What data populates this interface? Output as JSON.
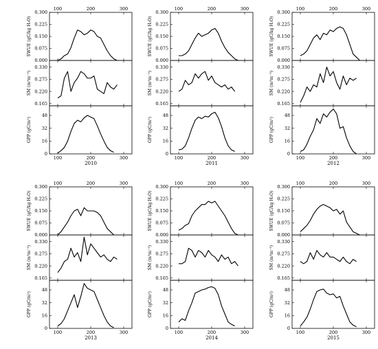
{
  "chart_data": [
    {
      "type": "line",
      "year": "2010",
      "x": [
        100,
        110,
        120,
        130,
        140,
        150,
        160,
        170,
        180,
        190,
        200,
        210,
        220,
        230,
        240,
        250,
        260,
        270,
        280,
        290,
        300
      ],
      "panels": [
        {
          "ylabel": "SWUE (gC/kg H₂O)",
          "yticks": [
            "0.000",
            "0.075",
            "0.150",
            "0.225",
            "0.300"
          ],
          "ylim": [
            0.0,
            0.3
          ],
          "values": [
            0.0,
            0.01,
            0.03,
            0.04,
            0.08,
            0.14,
            0.19,
            0.18,
            0.16,
            0.17,
            0.19,
            0.18,
            0.15,
            0.14,
            0.1,
            0.06,
            0.03,
            0.01,
            0.0,
            null,
            null
          ]
        },
        {
          "ylabel": "SM (m³m⁻³)",
          "yticks": [
            "0.165",
            "0.220",
            "0.275",
            "0.330"
          ],
          "ylim": [
            0.155,
            0.36
          ],
          "values": [
            0.19,
            0.2,
            0.28,
            0.31,
            0.22,
            0.26,
            0.28,
            0.31,
            0.3,
            0.28,
            0.28,
            0.29,
            0.23,
            0.22,
            0.21,
            0.26,
            0.24,
            0.23,
            0.25,
            null,
            null
          ]
        },
        {
          "ylabel": "GPP (gC/m²)",
          "yticks": [
            "0",
            "16",
            "32",
            "48"
          ],
          "ylim": [
            0,
            60
          ],
          "values": [
            1,
            4,
            8,
            16,
            28,
            38,
            42,
            40,
            45,
            48,
            46,
            44,
            35,
            25,
            16,
            8,
            4,
            2,
            null,
            null,
            null
          ]
        }
      ]
    },
    {
      "type": "line",
      "year": "2011",
      "x": [
        100,
        110,
        120,
        130,
        140,
        150,
        160,
        170,
        180,
        190,
        200,
        210,
        220,
        230,
        240,
        250,
        260,
        270,
        280,
        290,
        300
      ],
      "panels": [
        {
          "ylabel": "SWUE (gC/kg H₂O)",
          "yticks": [
            "0.000",
            "0.075",
            "0.150",
            "0.225",
            "0.300"
          ],
          "ylim": [
            0.0,
            0.3
          ],
          "values": [
            0.03,
            0.03,
            0.04,
            0.06,
            0.1,
            0.14,
            0.17,
            0.15,
            0.16,
            0.17,
            0.19,
            0.2,
            0.17,
            0.12,
            0.08,
            0.05,
            0.03,
            0.01,
            0.0,
            null,
            null
          ]
        },
        {
          "ylabel": "SM (m³m⁻³)",
          "yticks": [
            "0.165",
            "0.220",
            "0.275",
            "0.330"
          ],
          "ylim": [
            0.155,
            0.36
          ],
          "values": [
            0.22,
            0.23,
            0.27,
            0.25,
            0.26,
            0.3,
            0.28,
            0.3,
            0.31,
            0.27,
            0.29,
            0.26,
            0.25,
            0.24,
            0.25,
            0.23,
            0.24,
            0.22,
            null,
            null,
            null
          ]
        },
        {
          "ylabel": "GPP (gC/m²)",
          "yticks": [
            "0",
            "16",
            "32",
            "48"
          ],
          "ylim": [
            0,
            60
          ],
          "values": [
            5,
            6,
            10,
            20,
            32,
            42,
            46,
            44,
            47,
            46,
            50,
            52,
            45,
            34,
            20,
            10,
            5,
            3,
            null,
            null,
            null
          ]
        }
      ]
    },
    {
      "type": "line",
      "year": "2012",
      "x": [
        100,
        110,
        120,
        130,
        140,
        150,
        160,
        170,
        180,
        190,
        200,
        210,
        220,
        230,
        240,
        250,
        260,
        270,
        280,
        290,
        300
      ],
      "panels": [
        {
          "ylabel": "SWUE (gC/kg H₂O)",
          "yticks": [
            "0.000",
            "0.075",
            "0.150",
            "0.225",
            "0.300"
          ],
          "ylim": [
            0.0,
            0.3
          ],
          "values": [
            0.03,
            0.04,
            0.06,
            0.1,
            0.14,
            0.16,
            0.13,
            0.17,
            0.16,
            0.19,
            0.18,
            0.2,
            0.21,
            0.2,
            0.16,
            0.1,
            0.04,
            0.02,
            0.0,
            null,
            null
          ]
        },
        {
          "ylabel": "SM (m³m⁻³)",
          "yticks": [
            "0.165",
            "0.220",
            "0.275",
            "0.330"
          ],
          "ylim": [
            0.155,
            0.36
          ],
          "values": [
            0.17,
            0.2,
            0.24,
            0.22,
            0.25,
            0.24,
            0.3,
            0.26,
            0.33,
            0.29,
            0.31,
            0.26,
            0.23,
            0.29,
            0.25,
            0.28,
            0.27,
            0.28,
            null,
            null,
            null
          ]
        },
        {
          "ylabel": "GPP (gC/m²)",
          "yticks": [
            "0",
            "16",
            "32",
            "48"
          ],
          "ylim": [
            0,
            60
          ],
          "values": [
            3,
            5,
            12,
            22,
            30,
            44,
            38,
            50,
            46,
            52,
            56,
            50,
            32,
            34,
            20,
            10,
            3,
            0,
            null,
            null,
            null
          ]
        }
      ]
    },
    {
      "type": "line",
      "year": "2013",
      "x": [
        100,
        110,
        120,
        130,
        140,
        150,
        160,
        170,
        180,
        190,
        200,
        210,
        220,
        230,
        240,
        250,
        260,
        270,
        280,
        290,
        300
      ],
      "panels": [
        {
          "ylabel": "SWUE (gC/kg H₂O)",
          "yticks": [
            "0.000",
            "0.075",
            "0.150",
            "0.225",
            "0.300"
          ],
          "ylim": [
            0.0,
            0.3
          ],
          "values": [
            0.0,
            0.02,
            0.05,
            0.08,
            0.12,
            0.15,
            0.16,
            0.12,
            0.17,
            0.15,
            0.15,
            0.15,
            0.14,
            0.12,
            0.08,
            0.04,
            0.02,
            0.0,
            null,
            null,
            null
          ]
        },
        {
          "ylabel": "SM (m³m⁻³)",
          "yticks": [
            "0.165",
            "0.220",
            "0.275",
            "0.330"
          ],
          "ylim": [
            0.155,
            0.36
          ],
          "values": [
            0.19,
            0.21,
            0.24,
            0.25,
            0.3,
            0.26,
            0.28,
            0.24,
            0.35,
            0.27,
            0.32,
            0.3,
            0.28,
            0.26,
            0.27,
            0.25,
            0.24,
            0.26,
            0.25,
            null,
            null
          ]
        },
        {
          "ylabel": "GPP (gC/m²)",
          "yticks": [
            "0",
            "16",
            "32",
            "48"
          ],
          "ylim": [
            0,
            60
          ],
          "values": [
            3,
            6,
            12,
            22,
            32,
            42,
            26,
            40,
            56,
            50,
            48,
            46,
            36,
            26,
            16,
            8,
            3,
            1,
            null,
            null,
            null
          ]
        }
      ]
    },
    {
      "type": "line",
      "year": "2014",
      "x": [
        100,
        110,
        120,
        130,
        140,
        150,
        160,
        170,
        180,
        190,
        200,
        210,
        220,
        230,
        240,
        250,
        260,
        270,
        280,
        290,
        300
      ],
      "panels": [
        {
          "ylabel": "SWUE (gC/kg H₂O)",
          "yticks": [
            "0.000",
            "0.075",
            "0.150",
            "0.225",
            "0.300"
          ],
          "ylim": [
            0.0,
            0.3
          ],
          "values": [
            0.03,
            0.04,
            0.06,
            0.07,
            0.12,
            0.15,
            0.17,
            0.19,
            0.19,
            0.21,
            0.2,
            0.21,
            0.18,
            0.15,
            0.12,
            0.08,
            0.04,
            0.01,
            0.0,
            null,
            null
          ]
        },
        {
          "ylabel": "SM (m³m⁻³)",
          "yticks": [
            "0.165",
            "0.220",
            "0.275",
            "0.330"
          ],
          "ylim": [
            0.155,
            0.36
          ],
          "values": [
            0.23,
            0.23,
            0.24,
            0.3,
            0.29,
            0.26,
            0.29,
            0.28,
            0.26,
            0.29,
            0.27,
            0.26,
            0.24,
            0.27,
            0.25,
            0.26,
            0.23,
            0.24,
            0.22,
            null,
            null
          ]
        },
        {
          "ylabel": "GPP (gC/m²)",
          "yticks": [
            "0",
            "16",
            "32",
            "48"
          ],
          "ylim": [
            0,
            60
          ],
          "values": [
            8,
            12,
            10,
            22,
            32,
            44,
            46,
            48,
            49,
            51,
            52,
            50,
            42,
            28,
            18,
            8,
            5,
            3,
            null,
            null,
            null
          ]
        }
      ]
    },
    {
      "type": "line",
      "year": "2015",
      "x": [
        100,
        110,
        120,
        130,
        140,
        150,
        160,
        170,
        180,
        190,
        200,
        210,
        220,
        230,
        240,
        250,
        260,
        270,
        280,
        290,
        300
      ],
      "panels": [
        {
          "ylabel": "SWUE (gC/kg H₂O)",
          "yticks": [
            "0.000",
            "0.075",
            "0.150",
            "0.225",
            "0.300"
          ],
          "ylim": [
            0.0,
            0.3
          ],
          "values": [
            0.02,
            0.04,
            0.06,
            0.09,
            0.13,
            0.16,
            0.18,
            0.19,
            0.18,
            0.17,
            0.15,
            0.16,
            0.13,
            0.15,
            0.08,
            0.05,
            0.02,
            0.01,
            0.0,
            null,
            null
          ]
        },
        {
          "ylabel": "SM (m³m⁻³)",
          "yticks": [
            "0.165",
            "0.220",
            "0.275",
            "0.330"
          ],
          "ylim": [
            0.155,
            0.36
          ],
          "values": [
            0.24,
            0.23,
            0.24,
            0.28,
            0.25,
            0.29,
            0.27,
            0.26,
            0.28,
            0.26,
            0.26,
            0.25,
            0.24,
            0.26,
            0.24,
            0.23,
            0.25,
            0.24,
            null,
            null,
            null
          ]
        },
        {
          "ylabel": "GPP (gC/m²)",
          "yticks": [
            "0",
            "16",
            "32",
            "48"
          ],
          "ylim": [
            0,
            60
          ],
          "values": [
            3,
            8,
            14,
            24,
            36,
            46,
            48,
            49,
            44,
            42,
            43,
            38,
            40,
            28,
            18,
            8,
            4,
            2,
            null,
            null,
            null
          ]
        }
      ]
    }
  ],
  "x_tick_labels": [
    "100",
    "200",
    "300"
  ],
  "x_ticks": [
    100,
    200,
    300
  ],
  "xlim": [
    75,
    325
  ]
}
